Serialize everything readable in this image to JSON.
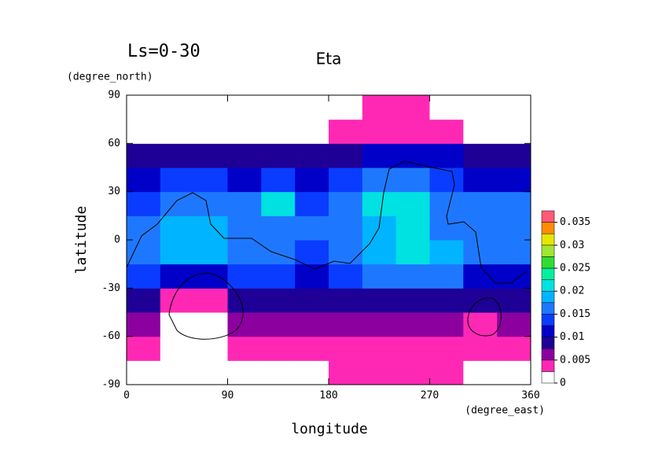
{
  "chart_data": {
    "type": "contour",
    "subtitle": "Ls=0-30",
    "title": "Eta",
    "x_label": "longitude",
    "y_label": "latitude",
    "x_unit": "(degree_east)",
    "y_unit": "(degree_north)",
    "xlim": [
      0,
      360
    ],
    "ylim": [
      -90,
      90
    ],
    "xticks": [
      0,
      90,
      180,
      270,
      360
    ],
    "yticks": [
      -90,
      -60,
      -30,
      0,
      30,
      60,
      90
    ],
    "x": [
      15,
      45,
      75,
      105,
      135,
      165,
      195,
      225,
      255,
      285,
      315,
      345
    ],
    "y": [
      -82.5,
      -67.5,
      -52.5,
      -37.5,
      -22.5,
      -7.5,
      7.5,
      22.5,
      37.5,
      52.5,
      67.5,
      82.5
    ],
    "z": [
      [
        0,
        0,
        0,
        0,
        0,
        0,
        0.003,
        0.003,
        0.003,
        0.003,
        0,
        0
      ],
      [
        0.003,
        0.002,
        0.002,
        0.003,
        0.003,
        0.003,
        0.003,
        0.003,
        0.003,
        0.003,
        0.003,
        0.003
      ],
      [
        0.006,
        0.001,
        0.001,
        0.006,
        0.007,
        0.006,
        0.007,
        0.007,
        0.007,
        0.007,
        0.004,
        0.006
      ],
      [
        0.009,
        0.003,
        0.003,
        0.008,
        0.009,
        0.008,
        0.009,
        0.009,
        0.009,
        0.009,
        0.008,
        0.009
      ],
      [
        0.013,
        0.012,
        0.012,
        0.013,
        0.014,
        0.012,
        0.013,
        0.015,
        0.017,
        0.015,
        0.012,
        0.012
      ],
      [
        0.017,
        0.019,
        0.018,
        0.017,
        0.016,
        0.014,
        0.015,
        0.019,
        0.022,
        0.018,
        0.015,
        0.016
      ],
      [
        0.016,
        0.018,
        0.018,
        0.016,
        0.016,
        0.015,
        0.016,
        0.018,
        0.021,
        0.017,
        0.016,
        0.015
      ],
      [
        0.014,
        0.015,
        0.016,
        0.015,
        0.02,
        0.014,
        0.015,
        0.02,
        0.02,
        0.016,
        0.015,
        0.015
      ],
      [
        0.012,
        0.013,
        0.013,
        0.012,
        0.013,
        0.012,
        0.013,
        0.017,
        0.017,
        0.014,
        0.012,
        0.012
      ],
      [
        0.009,
        0.009,
        0.009,
        0.009,
        0.009,
        0.009,
        0.009,
        0.01,
        0.012,
        0.01,
        0.009,
        0.009
      ],
      [
        0,
        0,
        0,
        0,
        0,
        0,
        0.003,
        0.003,
        0.003,
        0.003,
        0,
        0
      ],
      [
        0,
        0,
        0,
        0,
        0,
        0,
        0,
        0.003,
        0.003,
        0,
        0,
        0
      ]
    ],
    "colorbar": {
      "levels": [
        0,
        0.0025,
        0.005,
        0.0075,
        0.01,
        0.0125,
        0.015,
        0.0175,
        0.02,
        0.0225,
        0.025,
        0.0275,
        0.03,
        0.0325,
        0.035,
        0.0375
      ],
      "colors": [
        "#ffffff",
        "#ff28b4",
        "#8c00a0",
        "#1e0096",
        "#0000c8",
        "#0a3cff",
        "#1e78ff",
        "#00b4ff",
        "#00e1e1",
        "#00f0a0",
        "#32dc32",
        "#a0e632",
        "#e6e600",
        "#ff8c00",
        "#ff5a78"
      ],
      "lim": [
        0,
        0.0375
      ],
      "ticks": [
        0,
        0.005,
        0.01,
        0.015,
        0.02,
        0.025,
        0.03,
        0.035
      ]
    }
  }
}
